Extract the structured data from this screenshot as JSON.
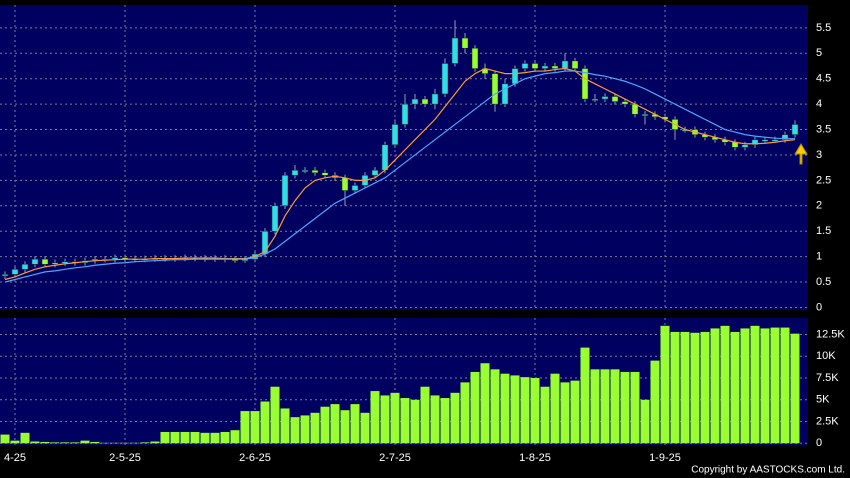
{
  "chart_data": [
    {
      "type": "candlestick",
      "open": [
        0.62,
        0.65,
        0.75,
        0.85,
        0.95,
        0.85,
        0.88,
        0.9,
        0.88,
        0.92,
        0.95,
        0.95,
        0.98,
        0.96,
        0.95,
        0.96,
        0.97,
        0.96,
        0.97,
        0.98,
        0.97,
        0.96,
        0.97,
        0.95,
        0.94,
        0.95,
        1.05,
        1.5,
        2.0,
        2.6,
        2.7,
        2.7,
        2.65,
        2.6,
        2.55,
        2.3,
        2.4,
        2.6,
        2.7,
        3.2,
        3.6,
        4.0,
        4.1,
        4.0,
        4.2,
        4.8,
        5.3,
        5.1,
        4.7,
        4.6,
        4.0,
        4.4,
        4.7,
        4.8,
        4.7,
        4.75,
        4.7,
        4.85,
        4.7,
        4.1,
        4.1,
        4.15,
        4.05,
        4.0,
        3.8,
        3.8,
        3.75,
        3.7,
        3.5,
        3.5,
        3.4,
        3.35,
        3.3,
        3.25,
        3.15,
        3.2,
        3.3,
        3.3,
        3.3,
        3.4
      ],
      "high": [
        0.71,
        0.81,
        0.91,
        1.01,
        1.01,
        0.94,
        0.96,
        0.96,
        0.98,
        1.01,
        1.01,
        1.04,
        1.04,
        1.02,
        1.02,
        1.03,
        1.03,
        1.03,
        1.04,
        1.04,
        1.03,
        1.03,
        1.03,
        1.01,
        1.01,
        1.11,
        1.56,
        2.06,
        2.66,
        2.8,
        2.76,
        2.76,
        2.71,
        2.66,
        2.61,
        2.46,
        2.66,
        2.76,
        3.26,
        3.7,
        4.2,
        4.2,
        4.16,
        4.3,
        4.9,
        5.65,
        5.4,
        5.16,
        4.8,
        4.66,
        4.5,
        4.76,
        4.86,
        4.86,
        4.81,
        4.81,
        5.0,
        4.91,
        4.76,
        4.2,
        4.21,
        4.21,
        4.11,
        4.06,
        3.86,
        3.86,
        3.81,
        3.76,
        3.56,
        3.56,
        3.46,
        3.41,
        3.36,
        3.31,
        3.26,
        3.36,
        3.36,
        3.36,
        3.46,
        3.68
      ],
      "low": [
        0.56,
        0.59,
        0.69,
        0.79,
        0.79,
        0.79,
        0.82,
        0.82,
        0.82,
        0.86,
        0.89,
        0.89,
        0.9,
        0.89,
        0.89,
        0.9,
        0.9,
        0.9,
        0.91,
        0.91,
        0.9,
        0.9,
        0.89,
        0.88,
        0.88,
        0.89,
        0.99,
        1.44,
        1.94,
        2.54,
        2.64,
        2.59,
        2.54,
        2.49,
        2.0,
        2.24,
        2.34,
        2.54,
        2.64,
        3.14,
        3.54,
        3.9,
        3.94,
        3.9,
        4.14,
        4.74,
        5.0,
        4.64,
        4.5,
        3.85,
        3.94,
        4.34,
        4.64,
        4.64,
        4.64,
        4.64,
        4.64,
        4.64,
        4.04,
        4.04,
        4.04,
        3.99,
        3.94,
        3.74,
        3.6,
        3.69,
        3.64,
        3.3,
        3.44,
        3.34,
        3.29,
        3.24,
        3.19,
        3.09,
        3.09,
        3.14,
        3.24,
        3.24,
        3.24,
        3.34
      ],
      "close": [
        0.65,
        0.75,
        0.85,
        0.95,
        0.85,
        0.88,
        0.9,
        0.88,
        0.92,
        0.95,
        0.95,
        0.98,
        0.96,
        0.95,
        0.96,
        0.97,
        0.96,
        0.97,
        0.98,
        0.97,
        0.96,
        0.97,
        0.95,
        0.94,
        0.95,
        1.05,
        1.5,
        2.0,
        2.6,
        2.7,
        2.7,
        2.65,
        2.6,
        2.55,
        2.3,
        2.4,
        2.6,
        2.7,
        3.2,
        3.6,
        4.0,
        4.1,
        4.0,
        4.2,
        4.8,
        5.3,
        5.1,
        4.7,
        4.6,
        4.0,
        4.4,
        4.7,
        4.8,
        4.7,
        4.75,
        4.7,
        4.85,
        4.7,
        4.1,
        4.1,
        4.15,
        4.05,
        4.0,
        3.8,
        3.8,
        3.75,
        3.7,
        3.5,
        3.5,
        3.4,
        3.35,
        3.3,
        3.25,
        3.15,
        3.2,
        3.3,
        3.3,
        3.3,
        3.4,
        3.6
      ],
      "up_color": "#33dde8",
      "down_color": "#99ff33",
      "series": [
        {
          "color": "#ff9933",
          "values": [
            0.55,
            0.6,
            0.68,
            0.75,
            0.8,
            0.83,
            0.86,
            0.88,
            0.9,
            0.92,
            0.93,
            0.94,
            0.95,
            0.95,
            0.95,
            0.96,
            0.96,
            0.96,
            0.97,
            0.97,
            0.97,
            0.97,
            0.96,
            0.96,
            0.96,
            1.0,
            1.1,
            1.4,
            1.8,
            2.1,
            2.35,
            2.5,
            2.55,
            2.58,
            2.55,
            2.5,
            2.5,
            2.55,
            2.7,
            2.9,
            3.1,
            3.3,
            3.5,
            3.7,
            3.95,
            4.2,
            4.45,
            4.6,
            4.7,
            4.65,
            4.6,
            4.6,
            4.62,
            4.65,
            4.65,
            4.68,
            4.7,
            4.65,
            4.5,
            4.4,
            4.3,
            4.2,
            4.1,
            4.0,
            3.9,
            3.8,
            3.7,
            3.6,
            3.5,
            3.45,
            3.4,
            3.35,
            3.3,
            3.25,
            3.22,
            3.22,
            3.23,
            3.25,
            3.28,
            3.3
          ]
        },
        {
          "color": "#4aa8ff",
          "values": [
            0.5,
            0.55,
            0.6,
            0.65,
            0.7,
            0.72,
            0.75,
            0.78,
            0.8,
            0.83,
            0.85,
            0.87,
            0.88,
            0.9,
            0.91,
            0.92,
            0.93,
            0.94,
            0.94,
            0.95,
            0.95,
            0.95,
            0.95,
            0.95,
            0.95,
            0.98,
            1.05,
            1.15,
            1.3,
            1.45,
            1.6,
            1.75,
            1.9,
            2.05,
            2.15,
            2.25,
            2.35,
            2.45,
            2.55,
            2.7,
            2.85,
            3.0,
            3.15,
            3.3,
            3.45,
            3.6,
            3.75,
            3.9,
            4.05,
            4.2,
            4.3,
            4.4,
            4.5,
            4.55,
            4.6,
            4.62,
            4.65,
            4.65,
            4.62,
            4.58,
            4.55,
            4.5,
            4.45,
            4.38,
            4.3,
            4.2,
            4.1,
            4.0,
            3.9,
            3.8,
            3.7,
            3.6,
            3.5,
            3.45,
            3.4,
            3.37,
            3.35,
            3.33,
            3.32,
            3.32
          ]
        }
      ],
      "ylim": [
        -0.05,
        5.95
      ],
      "yticks": [
        0,
        0.5,
        1,
        1.5,
        2,
        2.5,
        3,
        3.5,
        4,
        4.5,
        5,
        5.5
      ],
      "grid": true
    },
    {
      "type": "bar",
      "categories": [
        null,
        "4-25",
        null,
        null,
        null,
        null,
        null,
        null,
        null,
        null,
        null,
        null,
        "2-5-25",
        null,
        null,
        null,
        null,
        null,
        null,
        null,
        null,
        null,
        null,
        null,
        null,
        "2-6-25",
        null,
        null,
        null,
        null,
        null,
        null,
        null,
        null,
        null,
        null,
        null,
        null,
        null,
        "2-7-25",
        null,
        null,
        null,
        null,
        null,
        null,
        null,
        null,
        null,
        null,
        null,
        null,
        null,
        "1-8-25",
        null,
        null,
        null,
        null,
        null,
        null,
        null,
        null,
        null,
        null,
        null,
        null,
        "1-9-25",
        null,
        null,
        null,
        null,
        null,
        null,
        null,
        null,
        null,
        null,
        null,
        null,
        null
      ],
      "values": [
        1000,
        300,
        1200,
        200,
        150,
        100,
        100,
        100,
        300,
        150,
        50,
        50,
        50,
        50,
        100,
        200,
        1300,
        1300,
        1300,
        1300,
        1200,
        1200,
        1300,
        1500,
        3700,
        3700,
        4800,
        6500,
        4000,
        3000,
        3200,
        3500,
        4200,
        4500,
        3800,
        4500,
        3500,
        6000,
        5500,
        5800,
        5200,
        5000,
        6500,
        5500,
        5200,
        5800,
        7000,
        8200,
        9200,
        8500,
        8000,
        7800,
        7600,
        7500,
        6500,
        8000,
        7000,
        7200,
        11000,
        8500,
        8500,
        8500,
        8200,
        8200,
        5000,
        9500,
        13500,
        12800,
        12800,
        12700,
        12800,
        13200,
        13500,
        12800,
        13200,
        13500,
        13200,
        13300,
        13300,
        12600
      ],
      "color": "#99ff33",
      "ylim": [
        -200,
        14400
      ],
      "yticks": [
        0,
        {
          "value": 2500,
          "label": "2.5K"
        },
        {
          "value": 5000,
          "label": "5K"
        },
        {
          "value": 7500,
          "label": "7.5K"
        },
        {
          "value": 10000,
          "label": "10K"
        },
        {
          "value": 12500,
          "label": "12.5K"
        }
      ],
      "grid": true,
      "copyright": "Copyright by AASTOCKS.com Ltd."
    }
  ]
}
